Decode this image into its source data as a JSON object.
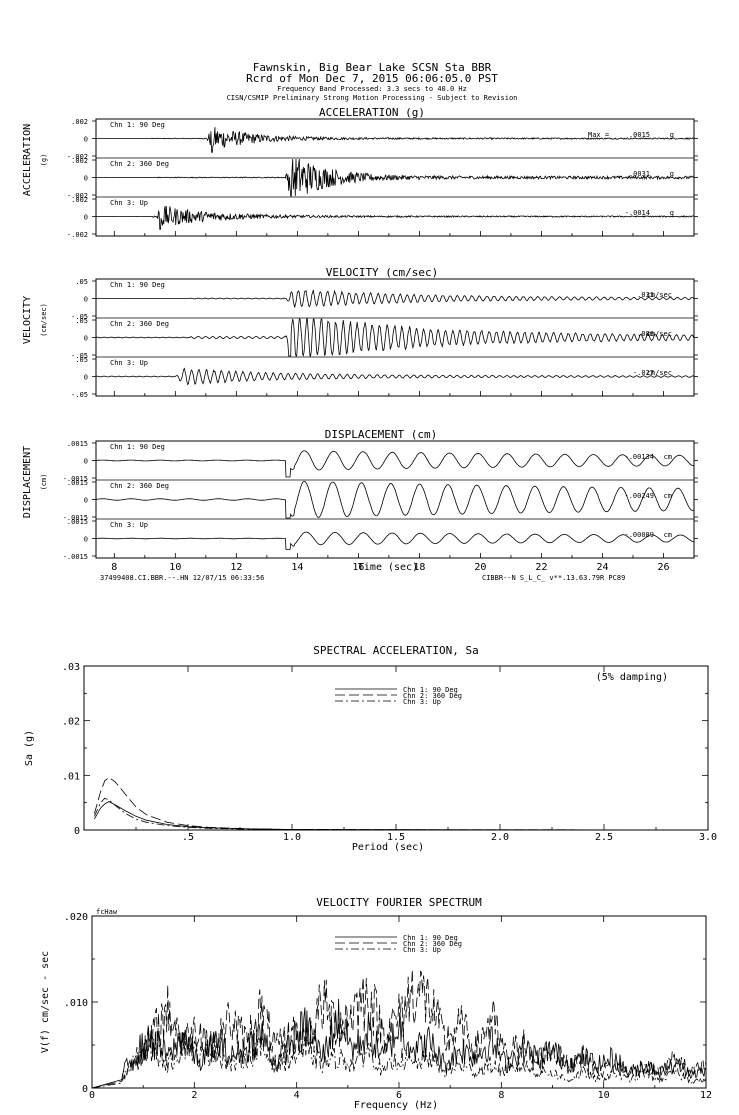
{
  "header": {
    "line1": "Fawnskin, Big Bear Lake    SCSN Sta BBR",
    "line2": "Rcrd of Mon Dec  7, 2015 06:06:05.0 PST",
    "line3": "Frequency Band Processed: 3.3 secs to 40.0 Hz",
    "line4": "CISN/CSMIP Preliminary Strong Motion Processing - Subject to Revision"
  },
  "chart_data": [
    {
      "type": "line",
      "title": "ACCELERATION (g)",
      "ylabel": "ACCELERATION",
      "yunit": "(g)",
      "max_label": "Max =",
      "unit_label": "g",
      "xlim": [
        7.4,
        27
      ],
      "channels": [
        {
          "name": "Chn 1: 90 Deg",
          "ticks": [
            ".002",
            "0",
            "-.002"
          ],
          "ylim": [
            -0.002,
            0.002
          ],
          "max_value": ".0015",
          "peak": 0.0015,
          "onset": 11,
          "decay": 0.75,
          "noise": 0.08,
          "style": "impulse"
        },
        {
          "name": "Chn 2: 360 Deg",
          "ticks": [
            ".002",
            "0",
            "-.002"
          ],
          "ylim": [
            -0.002,
            0.002
          ],
          "max_value": ".0031",
          "peak": 0.0031,
          "onset": 13.6,
          "decay": 0.9,
          "noise": 0.05,
          "style": "impulse"
        },
        {
          "name": "Chn 3: Up",
          "ticks": [
            ".002",
            "0",
            "-.002"
          ],
          "ylim": [
            -0.002,
            0.002
          ],
          "max_value": "-.0014",
          "peak": 0.0014,
          "onset": 9.3,
          "decay": 0.6,
          "noise": 0.25,
          "style": "impulse"
        }
      ]
    },
    {
      "type": "line",
      "title": "VELOCITY (cm/sec)",
      "ylabel": "VELOCITY",
      "yunit": "(cm/sec)",
      "unit_label": "cm/sec",
      "xlim": [
        7.4,
        27
      ],
      "channels": [
        {
          "name": "Chn 1: 90 Deg",
          "ticks": [
            ".05",
            "0",
            "-.05"
          ],
          "ylim": [
            -0.05,
            0.05
          ],
          "max_value": ".031",
          "peak": 0.031,
          "onset": 13.6,
          "decay": 0.25,
          "noise": 0.05,
          "style": "wave"
        },
        {
          "name": "Chn 2: 360 Deg",
          "ticks": [
            ".05",
            "0",
            "-.05"
          ],
          "ylim": [
            -0.05,
            0.05
          ],
          "max_value": ".080",
          "peak": 0.08,
          "onset": 13.6,
          "decay": 0.25,
          "noise": 0.05,
          "style": "wave"
        },
        {
          "name": "Chn 3: Up",
          "ticks": [
            ".05",
            "0",
            "-.05"
          ],
          "ylim": [
            -0.05,
            0.05
          ],
          "max_value": "-.027",
          "peak": 0.027,
          "onset": 10,
          "decay": 0.3,
          "noise": 0.1,
          "style": "wave"
        }
      ]
    },
    {
      "type": "line",
      "title": "DISPLACEMENT (cm)",
      "ylabel": "DISPLACEMENT",
      "yunit": "(cm)",
      "unit_label": "cm",
      "xlabel": "Time (sec)",
      "xticks": [
        8,
        10,
        12,
        14,
        16,
        18,
        20,
        22,
        24,
        26
      ],
      "xlim": [
        7.4,
        27
      ],
      "footer_left": "37499408.CI.BBR.--.HN 12/07/15 06:33:56",
      "footer_right": "CIBBR--N  S_L_C_  v**.13.63.79R PC89",
      "channels": [
        {
          "name": "Chn 1: 90 Deg",
          "ticks": [
            ".0015",
            "0",
            "-.0015"
          ],
          "ylim": [
            -0.0015,
            0.0015
          ],
          "max_value": "-.00134",
          "peak": 0.00134,
          "onset": 13.6,
          "decay": 0.08,
          "noise": 0.02,
          "style": "slow"
        },
        {
          "name": "Chn 2: 360 Deg",
          "ticks": [
            ".0015",
            "0",
            "-.0015"
          ],
          "ylim": [
            -0.0015,
            0.0015
          ],
          "max_value": "-.00249",
          "peak": 0.00249,
          "onset": 13.6,
          "decay": 0.06,
          "noise": 0.02,
          "style": "slow"
        },
        {
          "name": "Chn 3: Up",
          "ticks": [
            ".0015",
            "0",
            "-.0015"
          ],
          "ylim": [
            -0.0015,
            0.0015
          ],
          "max_value": "-.00089",
          "peak": 0.00089,
          "onset": 13.6,
          "decay": 0.08,
          "noise": 0.02,
          "style": "slow"
        }
      ]
    },
    {
      "type": "line",
      "title": "SPECTRAL ACCELERATION, Sa",
      "xlabel": "Period (sec)",
      "ylabel": "Sa (g)",
      "annotation": "(5% damping)",
      "xlim": [
        0,
        3.0
      ],
      "ylim": [
        0,
        0.03
      ],
      "xticks": [
        "",
        ".5",
        "1.0",
        "1.5",
        "2.0",
        "2.5",
        "3.0"
      ],
      "xtick_values": [
        0,
        0.5,
        1.0,
        1.5,
        2.0,
        2.5,
        3.0
      ],
      "yticks": [
        "0",
        ".01",
        ".02",
        ".03"
      ],
      "ytick_values": [
        0,
        0.01,
        0.02,
        0.03
      ],
      "series": [
        {
          "name": "Chn 1: 90 Deg",
          "dash": "",
          "x": [
            0.05,
            0.08,
            0.1,
            0.12,
            0.15,
            0.2,
            0.25,
            0.3,
            0.4,
            0.5,
            0.6,
            0.8,
            1.0,
            1.5,
            2.0,
            3.0
          ],
          "values": [
            0.002,
            0.004,
            0.0048,
            0.0052,
            0.0046,
            0.0035,
            0.0025,
            0.0018,
            0.001,
            0.0006,
            0.0004,
            0.0002,
            0.0001,
            5e-05,
            3e-05,
            1e-05
          ]
        },
        {
          "name": "Chn 2: 360 Deg",
          "dash": "10,4",
          "x": [
            0.05,
            0.08,
            0.1,
            0.12,
            0.15,
            0.2,
            0.25,
            0.3,
            0.4,
            0.5,
            0.6,
            0.8,
            1.0,
            1.5,
            2.0,
            3.0
          ],
          "values": [
            0.003,
            0.007,
            0.009,
            0.0096,
            0.0088,
            0.0065,
            0.0042,
            0.0028,
            0.0014,
            0.0008,
            0.0005,
            0.0002,
            0.0001,
            5e-05,
            3e-05,
            1e-05
          ]
        },
        {
          "name": "Chn 3: Up",
          "dash": "8,3,2,3",
          "x": [
            0.05,
            0.08,
            0.1,
            0.12,
            0.15,
            0.2,
            0.25,
            0.3,
            0.4,
            0.5,
            0.6,
            0.8,
            1.0,
            1.5,
            2.0,
            3.0
          ],
          "values": [
            0.0025,
            0.005,
            0.0058,
            0.0055,
            0.0045,
            0.003,
            0.002,
            0.0014,
            0.0008,
            0.0005,
            0.0003,
            0.00015,
            0.0001,
            4e-05,
            2e-05,
            1e-05
          ]
        }
      ]
    },
    {
      "type": "line",
      "title": "VELOCITY FOURIER SPECTRUM",
      "xlabel": "Frequency (Hz)",
      "ylabel": "V(f)  cm/sec - sec",
      "corner_label": "fcHaw",
      "xlim": [
        0,
        12
      ],
      "ylim": [
        0,
        0.02
      ],
      "xticks": [
        "0",
        "2",
        "4",
        "6",
        "8",
        "10",
        "12"
      ],
      "xtick_values": [
        0,
        2,
        4,
        6,
        8,
        10,
        12
      ],
      "yticks": [
        "0",
        ".010",
        ".020"
      ],
      "ytick_values": [
        0,
        0.01,
        0.02
      ],
      "series": [
        {
          "name": "Chn 1: 90 Deg",
          "dash": "",
          "x": [
            0,
            0.3,
            0.6,
            0.9,
            1.2,
            1.5,
            1.8,
            2.1,
            2.4,
            2.7,
            3.0,
            3.3,
            3.6,
            3.9,
            4.2,
            4.5,
            4.8,
            5.1,
            5.4,
            5.7,
            6.0,
            6.3,
            6.6,
            6.9,
            7.2,
            7.5,
            7.8,
            8.1,
            8.4,
            8.7,
            9.0,
            9.3,
            9.6,
            9.9,
            10.2,
            10.5,
            10.8,
            11.1,
            11.4,
            11.7,
            12.0
          ],
          "values": [
            0,
            0.0005,
            0.002,
            0.005,
            0.006,
            0.004,
            0.007,
            0.003,
            0.006,
            0.004,
            0.005,
            0.007,
            0.003,
            0.006,
            0.008,
            0.004,
            0.009,
            0.005,
            0.007,
            0.004,
            0.008,
            0.005,
            0.006,
            0.003,
            0.005,
            0.004,
            0.006,
            0.003,
            0.005,
            0.004,
            0.005,
            0.003,
            0.004,
            0.003,
            0.004,
            0.002,
            0.003,
            0.002,
            0.003,
            0.002,
            0.002
          ]
        },
        {
          "name": "Chn 2: 360 Deg",
          "dash": "10,4",
          "x": [
            0,
            0.3,
            0.6,
            0.9,
            1.2,
            1.5,
            1.8,
            2.1,
            2.4,
            2.7,
            3.0,
            3.3,
            3.6,
            3.9,
            4.2,
            4.5,
            4.8,
            5.1,
            5.4,
            5.7,
            6.0,
            6.3,
            6.6,
            6.9,
            7.2,
            7.5,
            7.8,
            8.1,
            8.4,
            8.7,
            9.0,
            9.3,
            9.6,
            9.9,
            10.2,
            10.5,
            10.8,
            11.1,
            11.4,
            11.7,
            12.0
          ],
          "values": [
            0,
            0.0004,
            0.0015,
            0.004,
            0.007,
            0.01,
            0.006,
            0.008,
            0.005,
            0.009,
            0.006,
            0.01,
            0.005,
            0.007,
            0.006,
            0.011,
            0.008,
            0.01,
            0.012,
            0.007,
            0.009,
            0.013,
            0.011,
            0.006,
            0.008,
            0.005,
            0.009,
            0.004,
            0.006,
            0.003,
            0.005,
            0.003,
            0.004,
            0.002,
            0.003,
            0.002,
            0.003,
            0.002,
            0.004,
            0.002,
            0.003
          ]
        },
        {
          "name": "Chn 3: Up",
          "dash": "8,3,2,3",
          "x": [
            0,
            0.3,
            0.6,
            0.9,
            1.2,
            1.5,
            1.8,
            2.1,
            2.4,
            2.7,
            3.0,
            3.3,
            3.6,
            3.9,
            4.2,
            4.5,
            4.8,
            5.1,
            5.4,
            5.7,
            6.0,
            6.3,
            6.6,
            6.9,
            7.2,
            7.5,
            7.8,
            8.1,
            8.4,
            8.7,
            9.0,
            9.3,
            9.6,
            9.9,
            10.2,
            10.5,
            10.8,
            11.1,
            11.4,
            11.7,
            12.0
          ],
          "values": [
            0,
            0.0003,
            0.0015,
            0.004,
            0.005,
            0.003,
            0.006,
            0.004,
            0.005,
            0.003,
            0.004,
            0.005,
            0.003,
            0.004,
            0.005,
            0.003,
            0.004,
            0.003,
            0.005,
            0.002,
            0.004,
            0.003,
            0.004,
            0.002,
            0.003,
            0.002,
            0.003,
            0.002,
            0.003,
            0.002,
            0.002,
            0.001,
            0.002,
            0.001,
            0.002,
            0.001,
            0.002,
            0.001,
            0.002,
            0.001,
            0.001
          ]
        }
      ]
    }
  ]
}
